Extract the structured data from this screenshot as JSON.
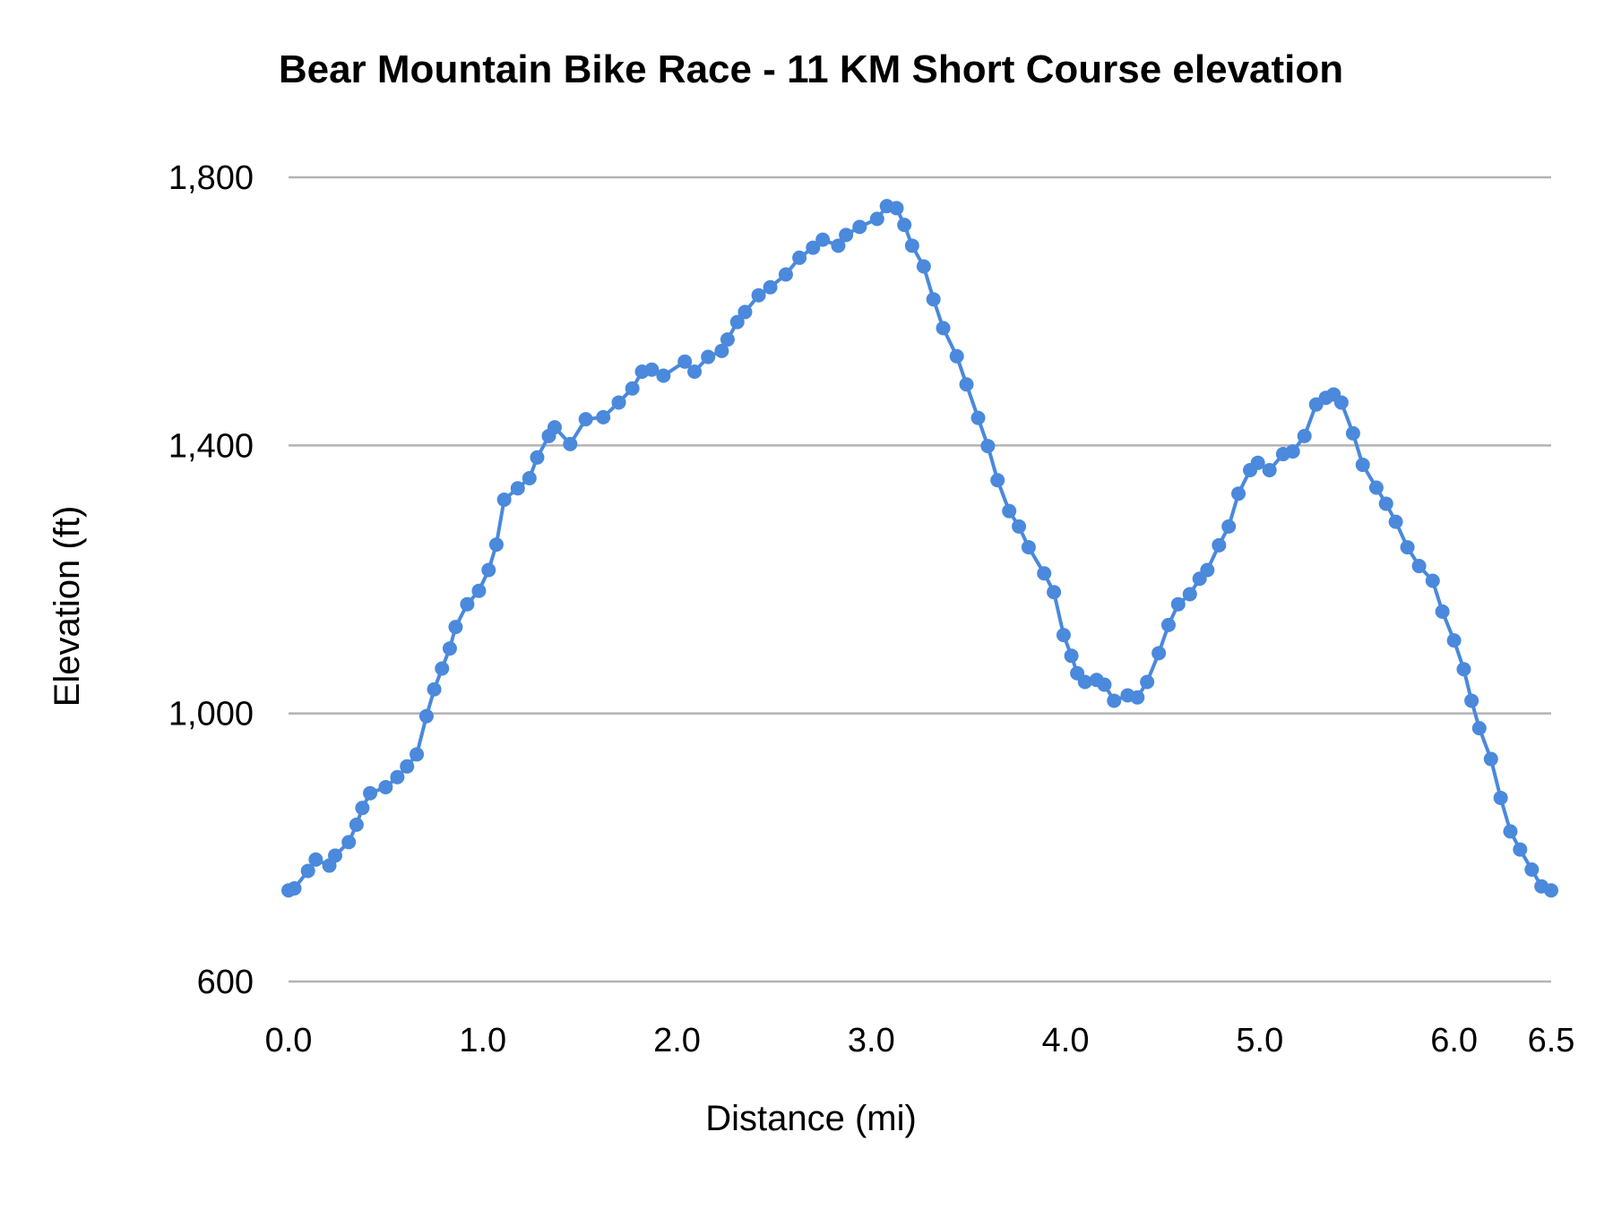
{
  "chart_data": {
    "type": "line",
    "title": "Bear Mountain Bike Race - 11 KM Short Course elevation",
    "xlabel": "Distance (mi)",
    "ylabel": "Elevation (ft)",
    "xlim": [
      0,
      6.5
    ],
    "ylim": [
      600,
      1800
    ],
    "x_ticks": [
      "0.0",
      "1.0",
      "2.0",
      "3.0",
      "4.0",
      "5.0",
      "6.0",
      "6.5"
    ],
    "x_tick_values": [
      0,
      1,
      2,
      3,
      4,
      5,
      6,
      6.5
    ],
    "y_ticks": [
      "600",
      "1,000",
      "1,400",
      "1,800"
    ],
    "y_tick_values": [
      600,
      1000,
      1400,
      1800
    ],
    "grid": "horizontal",
    "legend": "none",
    "markers": true,
    "colors": {
      "series": "#4a89dc",
      "grid": "#b3b3b3"
    },
    "series": [
      {
        "x": [
          0.0,
          0.03,
          0.1,
          0.14,
          0.21,
          0.24,
          0.31,
          0.35,
          0.38,
          0.42,
          0.5,
          0.56,
          0.61,
          0.66,
          0.71,
          0.75,
          0.79,
          0.83,
          0.86,
          0.92,
          0.98,
          1.03,
          1.07,
          1.11,
          1.18,
          1.24,
          1.28,
          1.34,
          1.37,
          1.45,
          1.53,
          1.62,
          1.7,
          1.77,
          1.82,
          1.87,
          1.93,
          2.04,
          2.09,
          2.16,
          2.23,
          2.26,
          2.31,
          2.35,
          2.42,
          2.48,
          2.56,
          2.63,
          2.7,
          2.75,
          2.83,
          2.87,
          2.94,
          3.03,
          3.08,
          3.13,
          3.17,
          3.21,
          3.27,
          3.32,
          3.37,
          3.44,
          3.49,
          3.55,
          3.6,
          3.65,
          3.71,
          3.76,
          3.81,
          3.89,
          3.94,
          3.99,
          4.03,
          4.06,
          4.1,
          4.16,
          4.2,
          4.25,
          4.32,
          4.37,
          4.42,
          4.48,
          4.53,
          4.58,
          4.64,
          4.69,
          4.73,
          4.79,
          4.84,
          4.89,
          4.95,
          4.99,
          5.05,
          5.12,
          5.17,
          5.23,
          5.29,
          5.34,
          5.38,
          5.42,
          5.48,
          5.53,
          5.6,
          5.65,
          5.7,
          5.76,
          5.82,
          5.89,
          5.94,
          6.0,
          6.05,
          6.09,
          6.13,
          6.19,
          6.24,
          6.29,
          6.34,
          6.4,
          6.45,
          6.5
        ],
        "y": [
          736,
          739,
          765,
          782,
          773,
          788,
          808,
          834,
          859,
          881,
          890,
          905,
          921,
          939,
          996,
          1036,
          1067,
          1097,
          1129,
          1163,
          1183,
          1214,
          1252,
          1319,
          1336,
          1351,
          1382,
          1414,
          1427,
          1402,
          1439,
          1442,
          1464,
          1485,
          1510,
          1513,
          1504,
          1525,
          1510,
          1532,
          1541,
          1558,
          1584,
          1599,
          1624,
          1636,
          1655,
          1680,
          1695,
          1707,
          1698,
          1714,
          1726,
          1738,
          1757,
          1754,
          1729,
          1698,
          1667,
          1618,
          1575,
          1533,
          1491,
          1441,
          1399,
          1348,
          1302,
          1279,
          1248,
          1209,
          1181,
          1117,
          1086,
          1060,
          1047,
          1050,
          1043,
          1019,
          1027,
          1024,
          1047,
          1090,
          1132,
          1163,
          1178,
          1201,
          1214,
          1251,
          1279,
          1328,
          1363,
          1374,
          1363,
          1387,
          1391,
          1414,
          1461,
          1471,
          1476,
          1464,
          1418,
          1371,
          1337,
          1313,
          1286,
          1248,
          1220,
          1198,
          1152,
          1109,
          1066,
          1019,
          978,
          932,
          874,
          824,
          797,
          767,
          742,
          736
        ]
      }
    ]
  }
}
